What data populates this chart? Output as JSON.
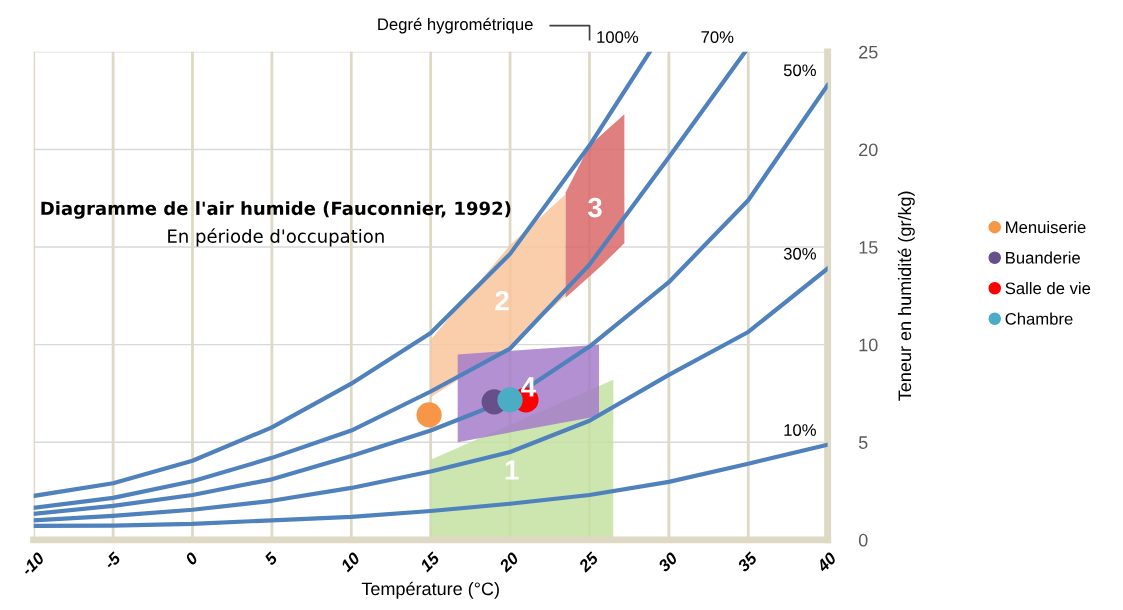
{
  "chart_data": {
    "type": "line",
    "title": "Diagramme de l'air humide (Fauconnier, 1992)",
    "subtitle": "En période d'occupation",
    "xlabel": "Température (°C)",
    "ylabel": "Teneur en humidité (gr/kg)",
    "xlim": [
      -10,
      40
    ],
    "xticks": [
      -10,
      -5,
      0,
      5,
      10,
      15,
      20,
      25,
      30,
      35,
      40
    ],
    "ylim": [
      0,
      25
    ],
    "yticks": [
      0,
      5,
      10,
      15,
      20,
      25
    ],
    "grid": true,
    "legend": "right",
    "line_style": "solid",
    "series": [
      {
        "type": "area",
        "name": "1",
        "color": "#c4e0a0",
        "x": [
          15,
          17.5,
          26.5,
          26.5,
          15
        ],
        "values": [
          4.1,
          5.0,
          8.2,
          0,
          0
        ]
      },
      {
        "type": "area",
        "name": "2",
        "color": "#f9c49c",
        "x": [
          15,
          20,
          23.5,
          23.5,
          20,
          15
        ],
        "values": [
          10.25,
          15.1,
          17.7,
          12.5,
          9.9,
          7.3
        ]
      },
      {
        "type": "area",
        "name": "3",
        "color": "#d9686a",
        "x": [
          23.5,
          25,
          27.2,
          27.2,
          25.7,
          23.5
        ],
        "values": [
          17.8,
          20.2,
          21.8,
          15.2,
          14.0,
          12.4
        ]
      },
      {
        "type": "area",
        "name": "4",
        "color": "#a57dc9",
        "x": [
          16.7,
          25.6,
          25.6,
          16.7
        ],
        "values": [
          9.5,
          10.0,
          6.35,
          5.0
        ]
      },
      {
        "name": "100%",
        "color": "#4f81bd",
        "x": [
          -10,
          -5,
          0,
          5,
          10,
          15,
          20,
          25,
          28.8
        ],
        "values": [
          2.25,
          2.9,
          4.05,
          5.76,
          8.0,
          10.6,
          14.65,
          20.2,
          25
        ]
      },
      {
        "name": "70%",
        "color": "#4f81bd",
        "x": [
          -10,
          -5,
          0,
          5,
          10,
          15,
          20,
          25,
          30,
          34.8
        ],
        "values": [
          1.64,
          2.15,
          3.0,
          4.2,
          5.6,
          7.6,
          9.8,
          14.1,
          19.6,
          25
        ]
      },
      {
        "name": "50%",
        "color": "#4f81bd",
        "x": [
          -10,
          -5,
          0,
          5,
          10,
          15,
          20,
          25,
          30,
          35,
          40
        ],
        "values": [
          1.33,
          1.74,
          2.3,
          3.1,
          4.3,
          5.6,
          7.2,
          9.9,
          13.2,
          17.4,
          23.3
        ]
      },
      {
        "name": "30%",
        "color": "#4f81bd",
        "x": [
          -10,
          -5,
          0,
          5,
          10,
          15,
          20,
          25,
          30,
          35,
          40
        ],
        "values": [
          1.0,
          1.23,
          1.54,
          2.0,
          2.66,
          3.5,
          4.5,
          6.1,
          8.45,
          10.65,
          13.9
        ]
      },
      {
        "name": "10%",
        "color": "#4f81bd",
        "x": [
          -10,
          -5,
          0,
          5,
          10,
          15,
          20,
          25,
          30,
          35,
          40
        ],
        "values": [
          0.72,
          0.73,
          0.82,
          1.0,
          1.18,
          1.48,
          1.85,
          2.3,
          2.97,
          3.9,
          4.87
        ]
      },
      {
        "type": "scatter",
        "name": "Menuiserie",
        "color": "#f79646",
        "marker": "circle",
        "x": [
          14.9
        ],
        "values": [
          6.4
        ]
      },
      {
        "type": "scatter",
        "name": "Buanderie",
        "color": "#674f8c",
        "marker": "circle",
        "x": [
          19.0
        ],
        "values": [
          7.07
        ]
      },
      {
        "type": "scatter",
        "name": "Salle de vie",
        "color": "#ff0000",
        "marker": "circle",
        "x": [
          21.0
        ],
        "values": [
          7.17
        ]
      },
      {
        "type": "scatter",
        "name": "Chambre",
        "color": "#4bacc6",
        "marker": "circle",
        "x": [
          20.0
        ],
        "values": [
          7.17
        ]
      }
    ],
    "annotations": [
      "Degré hygrométrique"
    ]
  }
}
